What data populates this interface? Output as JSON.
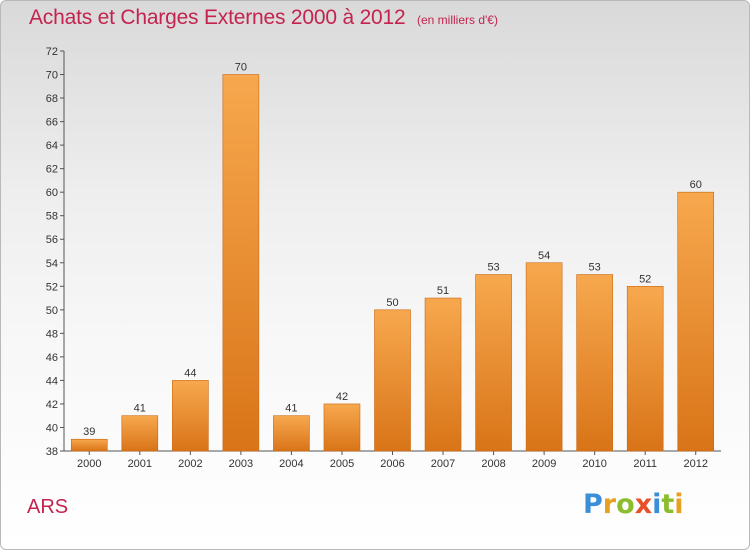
{
  "header": {
    "title": "Achats et Charges Externes 2000 à 2012",
    "subtitle": "(en milliers d'€)"
  },
  "footer": {
    "commune": "ARS",
    "logo_letters": [
      {
        "char": "P",
        "color": "#3a8fd6"
      },
      {
        "char": "r",
        "color": "#e8a020"
      },
      {
        "char": "o",
        "color": "#8cbd2c"
      },
      {
        "char": "x",
        "color": "#e8502a"
      },
      {
        "char": "i",
        "color": "#3a8fd6"
      },
      {
        "char": "t",
        "color": "#8cbd2c"
      },
      {
        "char": "i",
        "color": "#e8a020"
      }
    ]
  },
  "colors": {
    "title": "#c4234f",
    "bar_light": "#f7a84e",
    "bar_dark": "#d97418",
    "bar_edge": "#c8680f"
  },
  "chart_data": {
    "type": "bar",
    "title": "Achats et Charges Externes 2000 à 2012",
    "subtitle": "(en milliers d'€)",
    "categories": [
      "2000",
      "2001",
      "2002",
      "2003",
      "2004",
      "2005",
      "2006",
      "2007",
      "2008",
      "2009",
      "2010",
      "2011",
      "2012"
    ],
    "values": [
      39,
      41,
      44,
      70,
      41,
      42,
      50,
      51,
      53,
      54,
      53,
      52,
      60
    ],
    "ylim": [
      38,
      72
    ],
    "yticks": [
      38,
      40,
      42,
      44,
      46,
      48,
      50,
      52,
      54,
      56,
      58,
      60,
      62,
      64,
      66,
      68,
      70,
      72
    ],
    "grid": false,
    "data_labels": true,
    "xlabel": "",
    "ylabel": ""
  }
}
